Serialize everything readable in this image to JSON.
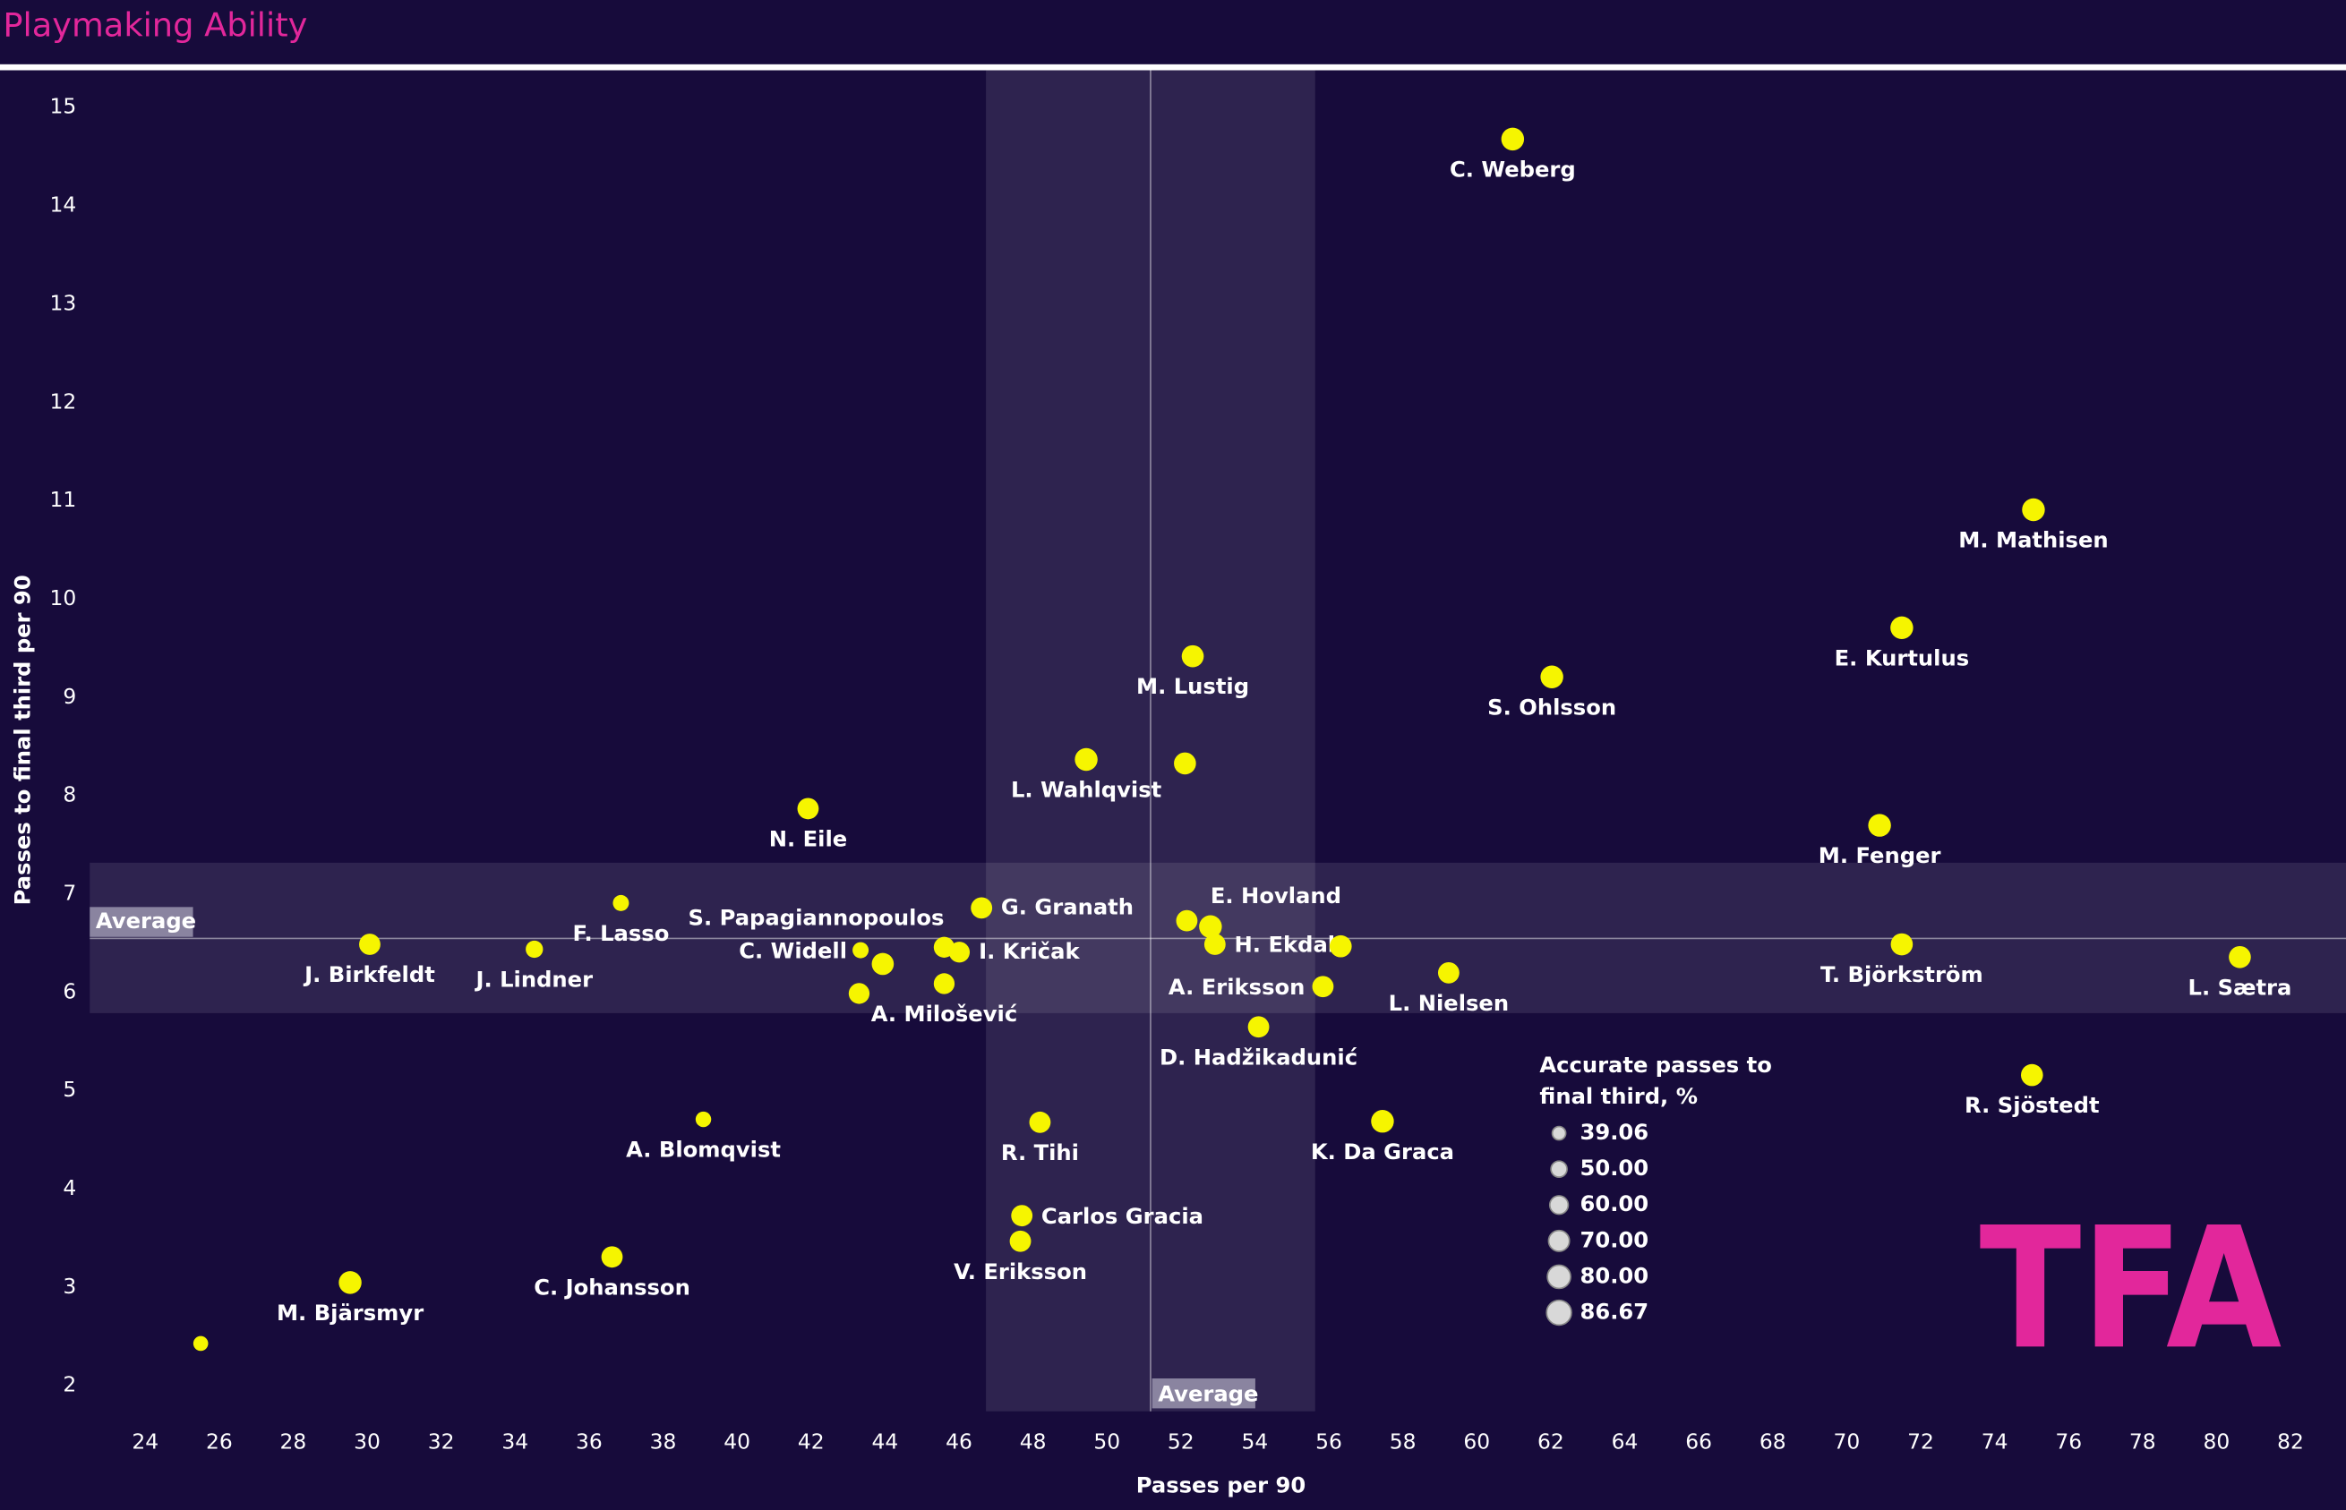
{
  "chart_data": {
    "type": "bubble",
    "title": "Playmaking Ability",
    "x_label": "Passes per 90",
    "y_label": "Passes to final third per 90",
    "xlim": [
      22.5,
      83.5
    ],
    "ylim": [
      1.74,
      15.38
    ],
    "xticks": [
      24,
      26,
      28,
      30,
      32,
      34,
      36,
      38,
      40,
      42,
      44,
      46,
      48,
      50,
      52,
      54,
      56,
      58,
      60,
      62,
      64,
      66,
      68,
      70,
      72,
      74,
      76,
      78,
      80,
      82
    ],
    "yticks": [
      2,
      3,
      4,
      5,
      6,
      7,
      8,
      9,
      10,
      11,
      12,
      13,
      14,
      15
    ],
    "grid": false,
    "color": "#f6f500",
    "labels": [
      "C. Weberg",
      "M. Mathisen",
      "E. Kurtulus",
      "S. Ohlsson",
      "M. Lustig",
      null,
      "L. Wahlqvist",
      "N. Eile",
      "M. Fenger",
      "F. Lasso",
      "G. Granath",
      null,
      "E. Hovland",
      "H. Ekdal",
      null,
      "J. Birkfeldt",
      "J. Lindner",
      "C. Widell",
      null,
      null,
      "S. Papagiannopoulos",
      "I. Kričak",
      "A. Milošević",
      "A. Eriksson",
      "L. Nielsen",
      "T. Björkström",
      "L. Sætra",
      "D. Hadžikadunić",
      "R. Sjöstedt",
      "A. Blomqvist",
      "R. Tihi",
      "K. Da Graca",
      "Carlos Gracia",
      "V. Eriksson",
      "C. Johansson",
      "M. Bjärsmyr",
      null
    ],
    "x": [
      60.97,
      75.05,
      71.49,
      62.03,
      52.32,
      52.11,
      49.44,
      41.92,
      70.89,
      36.86,
      46.61,
      52.16,
      52.8,
      52.92,
      56.32,
      30.07,
      34.52,
      43.34,
      43.94,
      43.3,
      45.6,
      46.01,
      45.6,
      55.84,
      59.24,
      71.49,
      80.63,
      54.1,
      75.01,
      39.09,
      48.19,
      57.45,
      47.7,
      47.66,
      36.62,
      29.54,
      25.5
    ],
    "values": [
      14.68,
      10.91,
      9.71,
      9.21,
      9.42,
      8.33,
      8.37,
      7.87,
      7.7,
      6.91,
      6.86,
      6.73,
      6.67,
      6.49,
      6.47,
      6.49,
      6.44,
      6.43,
      6.29,
      5.99,
      6.46,
      6.41,
      6.09,
      6.06,
      6.2,
      6.49,
      6.36,
      5.65,
      5.16,
      4.71,
      4.68,
      4.69,
      3.73,
      3.47,
      3.31,
      3.05,
      2.43
    ],
    "sizes": [
      78,
      78,
      78,
      78,
      75,
      75,
      78,
      72,
      78,
      50,
      72,
      72,
      78,
      72,
      75,
      72,
      55,
      50,
      75,
      70,
      70,
      70,
      70,
      72,
      72,
      75,
      75,
      72,
      75,
      48,
      72,
      78,
      72,
      72,
      72,
      78,
      45
    ],
    "size_legend_title": [
      "Accurate passes to",
      "final third, %"
    ],
    "size_legend": [
      39.06,
      {
        "value": 50,
        "label": "50.00"
      },
      {
        "value": 60,
        "label": "60.00"
      },
      {
        "value": 70,
        "label": "70.00"
      },
      {
        "value": 80,
        "label": "80.00"
      },
      86.67
    ],
    "averages": {
      "x": 51.18,
      "y": 6.55,
      "x_band": [
        46.73,
        55.63
      ],
      "y_band": [
        5.79,
        7.32
      ],
      "x_text": "Average",
      "y_text": "Average"
    },
    "logo": "TFA"
  }
}
